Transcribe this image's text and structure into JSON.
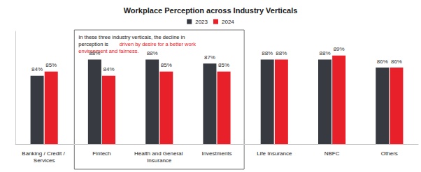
{
  "chart_data": {
    "type": "bar",
    "title": "Workplace Perception across Industry Verticals",
    "categories": [
      "Banking / Credit / Services",
      "Fintech",
      "Health and General Insurance",
      "Investments",
      "Life Insurance",
      "NBFC",
      "Others"
    ],
    "series": [
      {
        "name": "2023",
        "color": "#373a40",
        "values": [
          84,
          88,
          88,
          87,
          88,
          88,
          86
        ],
        "value_labels": [
          "84%",
          "88%",
          "88%",
          "87%",
          "88%",
          "88%",
          "86%"
        ]
      },
      {
        "name": "2024",
        "color": "#e8202a",
        "values": [
          85,
          84,
          85,
          85,
          88,
          89,
          86
        ],
        "value_labels": [
          "85%",
          "84%",
          "85%",
          "85%",
          "88%",
          "89%",
          "86%"
        ]
      }
    ],
    "ylim": [
      67,
      95
    ],
    "tick_labels": "x",
    "data_labels": true,
    "legend": "top",
    "annotation": {
      "segments": [
        {
          "text": "In these three industry verticals, the decline in perception is ",
          "color": "#222222"
        },
        {
          "text": "driven by desire for a better work environment and fairness.",
          "color": "#e8202a"
        }
      ],
      "categories": [
        "Fintech",
        "Health and General Insurance",
        "Investments"
      ]
    }
  }
}
